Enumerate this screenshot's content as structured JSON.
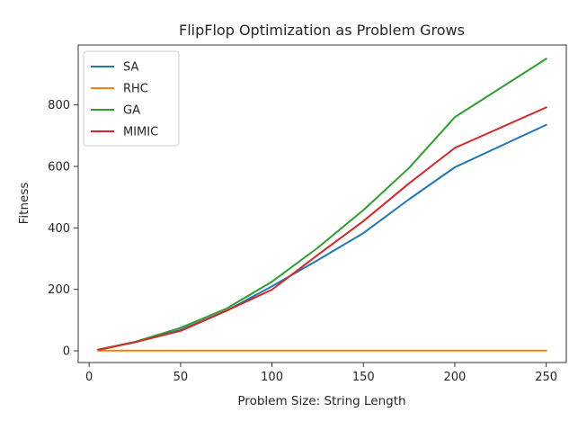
{
  "chart_data": {
    "type": "line",
    "title": "FlipFlop Optimization as Problem Grows",
    "xlabel": "Problem Size: String Length",
    "ylabel": "Fitness",
    "x": [
      5,
      25,
      50,
      75,
      100,
      125,
      150,
      175,
      200,
      250
    ],
    "xlim": [
      -6,
      261
    ],
    "ylim": [
      -38,
      995
    ],
    "xticks": [
      0,
      50,
      100,
      150,
      200,
      250
    ],
    "yticks": [
      0,
      200,
      400,
      600,
      800
    ],
    "grid": false,
    "legend_position": "top-left",
    "series": [
      {
        "name": "SA",
        "color": "#1f77b4",
        "values": [
          3,
          28,
          68,
          130,
          210,
          295,
          383,
          493,
          597,
          735
        ]
      },
      {
        "name": "RHC",
        "color": "#ff7f0e",
        "values": [
          1,
          1,
          1,
          1,
          1,
          1,
          1,
          1,
          1,
          1
        ]
      },
      {
        "name": "GA",
        "color": "#2ca02c",
        "values": [
          4,
          29,
          75,
          137,
          225,
          335,
          458,
          595,
          760,
          950
        ]
      },
      {
        "name": "MIMIC",
        "color": "#d62728",
        "values": [
          3,
          28,
          65,
          130,
          199,
          312,
          422,
          545,
          660,
          792
        ]
      }
    ]
  }
}
